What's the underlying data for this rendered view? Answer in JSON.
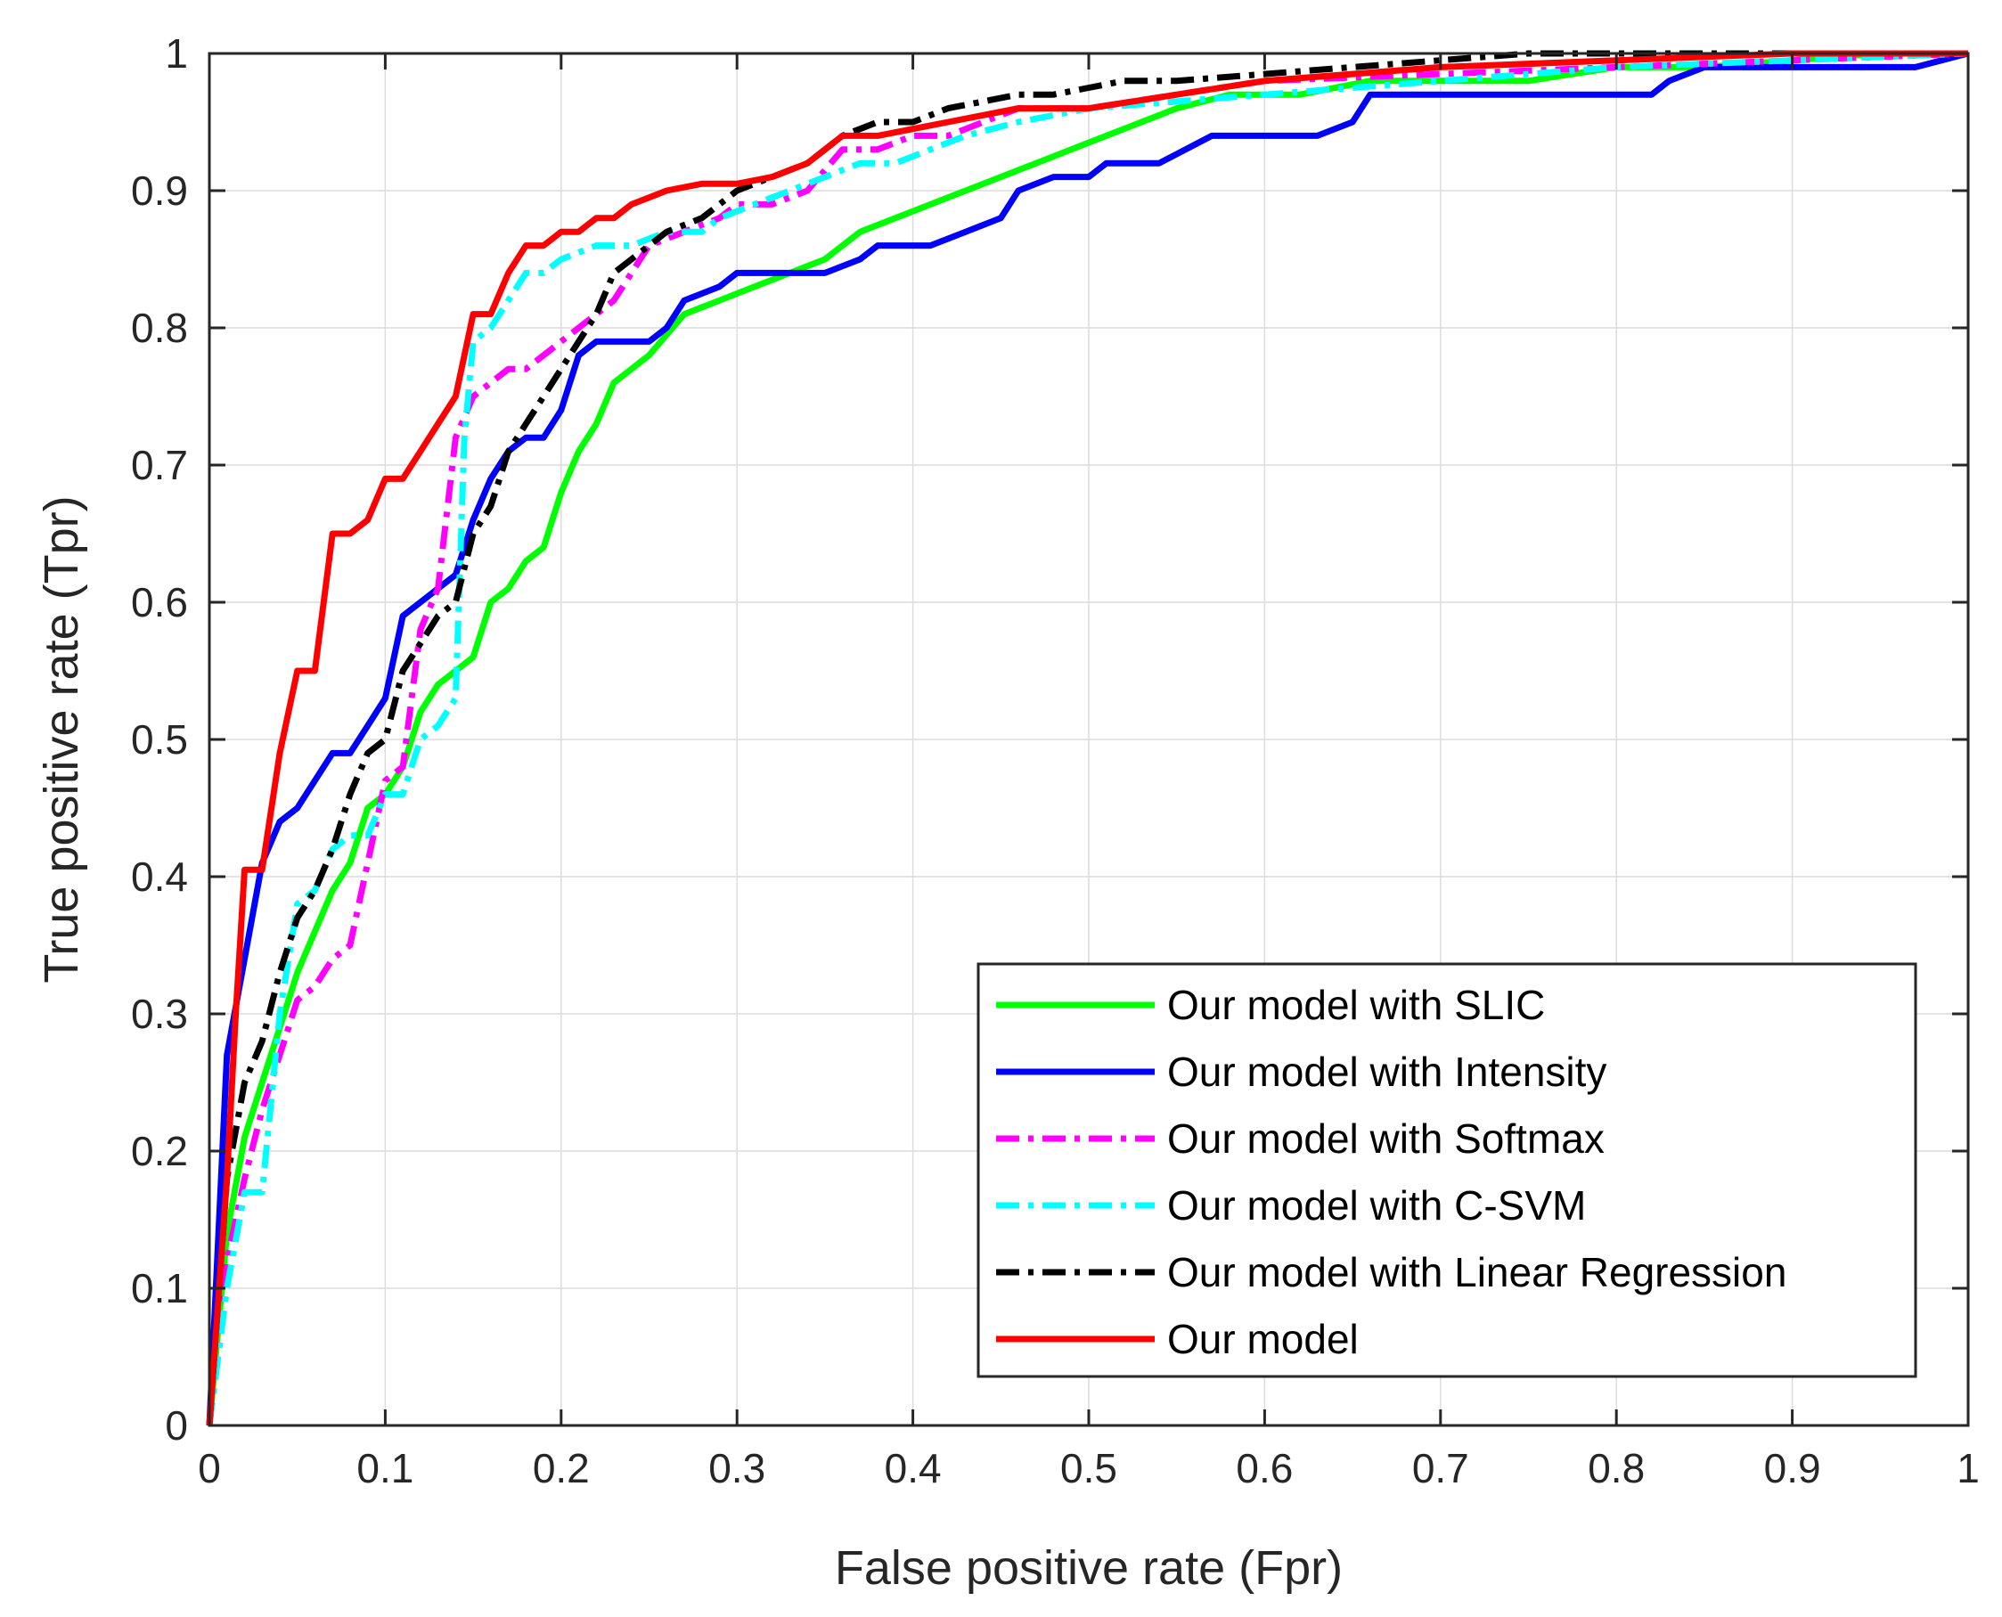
{
  "chart_data": {
    "type": "line",
    "title": "",
    "xlabel": "False positive rate (Fpr)",
    "ylabel": "True positive rate (Tpr)",
    "xlim": [
      0,
      1
    ],
    "ylim": [
      0,
      1
    ],
    "grid": true,
    "legend_position": "bottom-right",
    "x_ticks": [
      "0",
      "0.1",
      "0.2",
      "0.3",
      "0.4",
      "0.5",
      "0.6",
      "0.7",
      "0.8",
      "0.9",
      "1"
    ],
    "y_ticks": [
      "0",
      "0.1",
      "0.2",
      "0.3",
      "0.4",
      "0.5",
      "0.6",
      "0.7",
      "0.8",
      "0.9",
      "1"
    ],
    "series": [
      {
        "name": "Our model with SLIC",
        "color": "#00ff00",
        "dash": "solid",
        "points": [
          [
            0,
            0
          ],
          [
            0.01,
            0.14
          ],
          [
            0.02,
            0.21
          ],
          [
            0.03,
            0.25
          ],
          [
            0.04,
            0.29
          ],
          [
            0.05,
            0.33
          ],
          [
            0.06,
            0.36
          ],
          [
            0.07,
            0.39
          ],
          [
            0.08,
            0.41
          ],
          [
            0.09,
            0.45
          ],
          [
            0.1,
            0.46
          ],
          [
            0.11,
            0.48
          ],
          [
            0.12,
            0.52
          ],
          [
            0.13,
            0.54
          ],
          [
            0.14,
            0.55
          ],
          [
            0.15,
            0.56
          ],
          [
            0.16,
            0.6
          ],
          [
            0.17,
            0.61
          ],
          [
            0.18,
            0.63
          ],
          [
            0.19,
            0.64
          ],
          [
            0.2,
            0.68
          ],
          [
            0.21,
            0.71
          ],
          [
            0.22,
            0.73
          ],
          [
            0.23,
            0.76
          ],
          [
            0.25,
            0.78
          ],
          [
            0.27,
            0.81
          ],
          [
            0.29,
            0.82
          ],
          [
            0.31,
            0.83
          ],
          [
            0.33,
            0.84
          ],
          [
            0.35,
            0.85
          ],
          [
            0.37,
            0.87
          ],
          [
            0.39,
            0.88
          ],
          [
            0.41,
            0.89
          ],
          [
            0.43,
            0.9
          ],
          [
            0.45,
            0.91
          ],
          [
            0.47,
            0.92
          ],
          [
            0.49,
            0.93
          ],
          [
            0.51,
            0.94
          ],
          [
            0.53,
            0.95
          ],
          [
            0.55,
            0.96
          ],
          [
            0.58,
            0.97
          ],
          [
            0.62,
            0.97
          ],
          [
            0.66,
            0.98
          ],
          [
            0.7,
            0.98
          ],
          [
            0.75,
            0.98
          ],
          [
            0.8,
            0.99
          ],
          [
            0.85,
            0.99
          ],
          [
            0.9,
            0.995
          ],
          [
            0.95,
            1
          ],
          [
            1,
            1
          ]
        ]
      },
      {
        "name": "Our model with Intensity",
        "color": "#0000ff",
        "dash": "solid",
        "points": [
          [
            0,
            0
          ],
          [
            0.01,
            0.27
          ],
          [
            0.02,
            0.34
          ],
          [
            0.03,
            0.41
          ],
          [
            0.04,
            0.44
          ],
          [
            0.05,
            0.45
          ],
          [
            0.06,
            0.47
          ],
          [
            0.07,
            0.49
          ],
          [
            0.08,
            0.49
          ],
          [
            0.09,
            0.51
          ],
          [
            0.1,
            0.53
          ],
          [
            0.11,
            0.59
          ],
          [
            0.12,
            0.6
          ],
          [
            0.13,
            0.61
          ],
          [
            0.14,
            0.62
          ],
          [
            0.15,
            0.66
          ],
          [
            0.16,
            0.69
          ],
          [
            0.17,
            0.71
          ],
          [
            0.18,
            0.72
          ],
          [
            0.19,
            0.72
          ],
          [
            0.2,
            0.74
          ],
          [
            0.21,
            0.78
          ],
          [
            0.22,
            0.79
          ],
          [
            0.25,
            0.79
          ],
          [
            0.26,
            0.8
          ],
          [
            0.27,
            0.82
          ],
          [
            0.29,
            0.83
          ],
          [
            0.3,
            0.84
          ],
          [
            0.35,
            0.84
          ],
          [
            0.37,
            0.85
          ],
          [
            0.38,
            0.86
          ],
          [
            0.41,
            0.86
          ],
          [
            0.43,
            0.87
          ],
          [
            0.45,
            0.88
          ],
          [
            0.46,
            0.9
          ],
          [
            0.48,
            0.91
          ],
          [
            0.5,
            0.91
          ],
          [
            0.51,
            0.92
          ],
          [
            0.54,
            0.92
          ],
          [
            0.57,
            0.94
          ],
          [
            0.63,
            0.94
          ],
          [
            0.65,
            0.95
          ],
          [
            0.66,
            0.97
          ],
          [
            0.68,
            0.97
          ],
          [
            0.82,
            0.97
          ],
          [
            0.83,
            0.98
          ],
          [
            0.85,
            0.99
          ],
          [
            0.97,
            0.99
          ],
          [
            1,
            1
          ]
        ]
      },
      {
        "name": "Our model with Softmax",
        "color": "#ff00ff",
        "dash": "dashdot",
        "points": [
          [
            0,
            0
          ],
          [
            0.01,
            0.12
          ],
          [
            0.02,
            0.18
          ],
          [
            0.03,
            0.23
          ],
          [
            0.04,
            0.27
          ],
          [
            0.05,
            0.31
          ],
          [
            0.06,
            0.32
          ],
          [
            0.07,
            0.34
          ],
          [
            0.08,
            0.35
          ],
          [
            0.09,
            0.41
          ],
          [
            0.1,
            0.47
          ],
          [
            0.11,
            0.48
          ],
          [
            0.12,
            0.58
          ],
          [
            0.13,
            0.61
          ],
          [
            0.14,
            0.72
          ],
          [
            0.15,
            0.75
          ],
          [
            0.16,
            0.76
          ],
          [
            0.17,
            0.77
          ],
          [
            0.18,
            0.77
          ],
          [
            0.19,
            0.78
          ],
          [
            0.2,
            0.79
          ],
          [
            0.21,
            0.8
          ],
          [
            0.22,
            0.81
          ],
          [
            0.23,
            0.82
          ],
          [
            0.25,
            0.86
          ],
          [
            0.27,
            0.87
          ],
          [
            0.29,
            0.88
          ],
          [
            0.3,
            0.89
          ],
          [
            0.32,
            0.89
          ],
          [
            0.34,
            0.9
          ],
          [
            0.36,
            0.93
          ],
          [
            0.38,
            0.93
          ],
          [
            0.4,
            0.94
          ],
          [
            0.42,
            0.94
          ],
          [
            0.44,
            0.95
          ],
          [
            0.46,
            0.96
          ],
          [
            0.5,
            0.96
          ],
          [
            0.55,
            0.97
          ],
          [
            0.6,
            0.98
          ],
          [
            0.7,
            0.985
          ],
          [
            0.8,
            0.99
          ],
          [
            0.9,
            0.995
          ],
          [
            1,
            1
          ]
        ]
      },
      {
        "name": "Our model with C-SVM",
        "color": "#00ffff",
        "dash": "dashdot",
        "points": [
          [
            0,
            0
          ],
          [
            0.01,
            0.1
          ],
          [
            0.02,
            0.17
          ],
          [
            0.03,
            0.17
          ],
          [
            0.04,
            0.3
          ],
          [
            0.05,
            0.38
          ],
          [
            0.06,
            0.39
          ],
          [
            0.07,
            0.42
          ],
          [
            0.08,
            0.43
          ],
          [
            0.09,
            0.43
          ],
          [
            0.1,
            0.46
          ],
          [
            0.11,
            0.46
          ],
          [
            0.12,
            0.5
          ],
          [
            0.13,
            0.51
          ],
          [
            0.14,
            0.53
          ],
          [
            0.145,
            0.72
          ],
          [
            0.15,
            0.79
          ],
          [
            0.16,
            0.8
          ],
          [
            0.17,
            0.82
          ],
          [
            0.18,
            0.84
          ],
          [
            0.19,
            0.84
          ],
          [
            0.2,
            0.85
          ],
          [
            0.22,
            0.86
          ],
          [
            0.24,
            0.86
          ],
          [
            0.26,
            0.87
          ],
          [
            0.28,
            0.87
          ],
          [
            0.29,
            0.88
          ],
          [
            0.31,
            0.89
          ],
          [
            0.33,
            0.9
          ],
          [
            0.35,
            0.91
          ],
          [
            0.37,
            0.92
          ],
          [
            0.39,
            0.92
          ],
          [
            0.41,
            0.93
          ],
          [
            0.43,
            0.94
          ],
          [
            0.46,
            0.95
          ],
          [
            0.5,
            0.96
          ],
          [
            0.55,
            0.965
          ],
          [
            0.6,
            0.97
          ],
          [
            0.7,
            0.98
          ],
          [
            0.8,
            0.99
          ],
          [
            0.9,
            0.995
          ],
          [
            1,
            1
          ]
        ]
      },
      {
        "name": "Our model with Linear Regression",
        "color": "#000000",
        "dash": "dashdot",
        "points": [
          [
            0,
            0
          ],
          [
            0.01,
            0.18
          ],
          [
            0.02,
            0.25
          ],
          [
            0.03,
            0.28
          ],
          [
            0.04,
            0.33
          ],
          [
            0.05,
            0.37
          ],
          [
            0.06,
            0.39
          ],
          [
            0.07,
            0.42
          ],
          [
            0.08,
            0.46
          ],
          [
            0.09,
            0.49
          ],
          [
            0.1,
            0.5
          ],
          [
            0.11,
            0.55
          ],
          [
            0.12,
            0.57
          ],
          [
            0.13,
            0.59
          ],
          [
            0.14,
            0.6
          ],
          [
            0.15,
            0.65
          ],
          [
            0.16,
            0.67
          ],
          [
            0.17,
            0.71
          ],
          [
            0.18,
            0.73
          ],
          [
            0.19,
            0.75
          ],
          [
            0.2,
            0.77
          ],
          [
            0.21,
            0.79
          ],
          [
            0.22,
            0.81
          ],
          [
            0.23,
            0.84
          ],
          [
            0.24,
            0.85
          ],
          [
            0.26,
            0.87
          ],
          [
            0.28,
            0.88
          ],
          [
            0.3,
            0.9
          ],
          [
            0.32,
            0.91
          ],
          [
            0.34,
            0.92
          ],
          [
            0.36,
            0.94
          ],
          [
            0.38,
            0.95
          ],
          [
            0.4,
            0.95
          ],
          [
            0.42,
            0.96
          ],
          [
            0.44,
            0.965
          ],
          [
            0.46,
            0.97
          ],
          [
            0.48,
            0.97
          ],
          [
            0.5,
            0.975
          ],
          [
            0.52,
            0.98
          ],
          [
            0.55,
            0.98
          ],
          [
            0.6,
            0.985
          ],
          [
            0.65,
            0.99
          ],
          [
            0.7,
            0.995
          ],
          [
            0.75,
            1
          ],
          [
            1,
            1
          ]
        ]
      },
      {
        "name": "Our model",
        "color": "#ff0000",
        "dash": "solid",
        "points": [
          [
            0,
            0
          ],
          [
            0.01,
            0.18
          ],
          [
            0.015,
            0.3
          ],
          [
            0.02,
            0.405
          ],
          [
            0.03,
            0.405
          ],
          [
            0.04,
            0.49
          ],
          [
            0.05,
            0.55
          ],
          [
            0.06,
            0.55
          ],
          [
            0.07,
            0.65
          ],
          [
            0.08,
            0.65
          ],
          [
            0.09,
            0.66
          ],
          [
            0.1,
            0.69
          ],
          [
            0.11,
            0.69
          ],
          [
            0.12,
            0.71
          ],
          [
            0.13,
            0.73
          ],
          [
            0.14,
            0.75
          ],
          [
            0.15,
            0.81
          ],
          [
            0.16,
            0.81
          ],
          [
            0.17,
            0.84
          ],
          [
            0.18,
            0.86
          ],
          [
            0.19,
            0.86
          ],
          [
            0.2,
            0.87
          ],
          [
            0.21,
            0.87
          ],
          [
            0.22,
            0.88
          ],
          [
            0.23,
            0.88
          ],
          [
            0.24,
            0.89
          ],
          [
            0.25,
            0.895
          ],
          [
            0.26,
            0.9
          ],
          [
            0.28,
            0.905
          ],
          [
            0.3,
            0.905
          ],
          [
            0.32,
            0.91
          ],
          [
            0.34,
            0.92
          ],
          [
            0.36,
            0.94
          ],
          [
            0.38,
            0.94
          ],
          [
            0.4,
            0.945
          ],
          [
            0.42,
            0.95
          ],
          [
            0.44,
            0.955
          ],
          [
            0.46,
            0.96
          ],
          [
            0.5,
            0.96
          ],
          [
            0.55,
            0.97
          ],
          [
            0.6,
            0.98
          ],
          [
            0.7,
            0.99
          ],
          [
            0.8,
            0.995
          ],
          [
            0.9,
            1
          ],
          [
            1,
            1
          ]
        ]
      }
    ]
  }
}
